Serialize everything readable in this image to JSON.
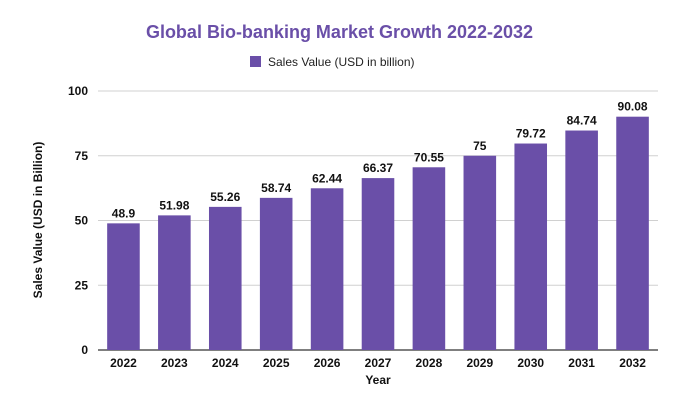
{
  "chart_data": {
    "type": "bar",
    "title": "Global Bio-banking Market Growth 2022-2032",
    "xlabel": "Year",
    "ylabel": "Sales Value (USD in Billion)",
    "ylim": [
      0,
      100
    ],
    "yticks": [
      0,
      25,
      50,
      75,
      100
    ],
    "grid": true,
    "legend_position": "top",
    "categories": [
      "2022",
      "2023",
      "2024",
      "2025",
      "2026",
      "2027",
      "2028",
      "2029",
      "2030",
      "2031",
      "2032"
    ],
    "series": [
      {
        "name": "Sales Value (USD in billion)",
        "values": [
          48.9,
          51.98,
          55.26,
          58.74,
          62.44,
          66.37,
          70.55,
          75,
          79.72,
          84.74,
          90.08
        ],
        "labels": [
          "48.9",
          "51.98",
          "55.26",
          "58.74",
          "62.44",
          "66.37",
          "70.55",
          "75",
          "79.72",
          "84.74",
          "90.08"
        ]
      }
    ],
    "colors": {
      "bar": "#6a4fa8",
      "title": "#6a4fa8",
      "first_label": "#1f4e5a"
    }
  }
}
